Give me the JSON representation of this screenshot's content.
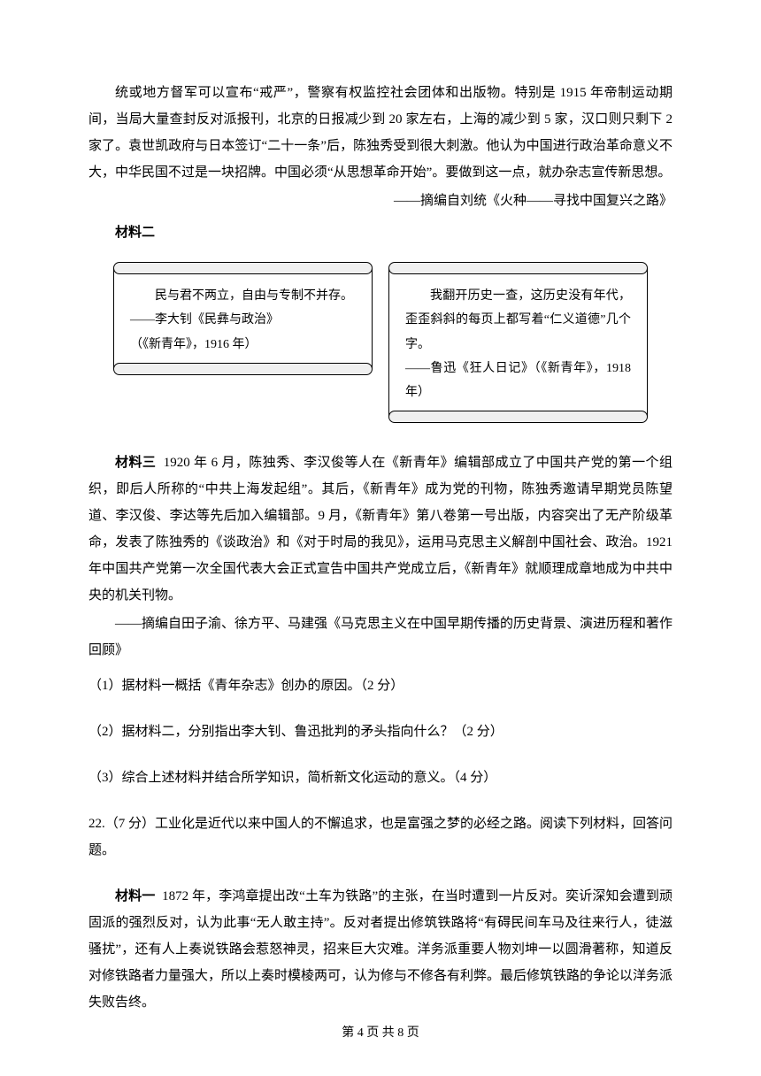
{
  "para1": "统或地方督军可以宣布“戒严”，警察有权监控社会团体和出版物。特别是 1915 年帝制运动期间，当局大量查封反对派报刊，北京的日报减少到 20 家左右，上海的减少到 5 家，汉口则只剩下 2 家了。袁世凯政府与日本签订“二十一条”后，陈独秀受到很大刺激。他认为中国进行政治革命意义不大，中华民国不过是一块招牌。中国必须“从思想革命开始”。要做到这一点，就办杂志宣传新思想。",
  "source1": "——摘编自刘统《火种——寻找中国复兴之路》",
  "material2_label": "材料二",
  "scroll_left": {
    "line1": "民与君不两立，自由与专制不并存。",
    "line2": "——李大钊《民彝与政治》",
    "line3": "（《新青年》，1916 年）"
  },
  "scroll_right": {
    "line1": "我翻开历史一查，这历史没有年代，歪歪斜斜的每页上都写着“仁义道德”几个字。",
    "line2": "——鲁迅《狂人日记》（《新青年》，1918年）"
  },
  "material3_label": "材料三",
  "para3": "1920 年 6 月，陈独秀、李汉俊等人在《新青年》编辑部成立了中国共产党的第一个组织，即后人所称的“中共上海发起组”。其后，《新青年》成为党的刊物，陈独秀邀请早期党员陈望道、李汉俊、李达等先后加入编辑部。9 月，《新青年》第八卷第一号出版，内容突出了无产阶级革命，发表了陈独秀的《谈政治》和《对于时局的我见》，运用马克思主义解剖中国社会、政治。1921 年中国共产党第一次全国代表大会正式宣告中国共产党成立后，《新青年》就顺理成章地成为中共中央的机关刊物。",
  "source3": "——摘编自田子渝、徐方平、马建强《马克思主义在中国早期传播的历史背景、演进历程和著作回顾》",
  "q1": "（1）据材料一概括《青年杂志》创办的原因。（2 分）",
  "q2": "（2）据材料二，分别指出李大钊、鲁迅批判的矛头指向什么？（2 分）",
  "q3": "（3）综合上述材料并结合所学知识，简析新文化运动的意义。（4 分）",
  "q22_intro": "22.（7 分）工业化是近代以来中国人的不懈追求，也是富强之梦的必经之路。阅读下列材料，回答问题。",
  "material1_label": "材料一",
  "para_m1": "1872 年，李鸿章提出改“土车为铁路”的主张，在当时遭到一片反对。奕䜣深知会遭到顽固派的强烈反对，认为此事“无人敢主持”。反对者提出修筑铁路将“有碍民间车马及往来行人，徒滋骚扰”，还有人上奏说铁路会惹怒神灵，招来巨大灾难。洋务派重要人物刘坤一以圆滑著称，知道反对修铁路者力量强大，所以上奏时模棱两可，认为修与不修各有利弊。最后修筑铁路的争论以洋务派失败告终。",
  "footer": "第 4 页 共 8 页"
}
